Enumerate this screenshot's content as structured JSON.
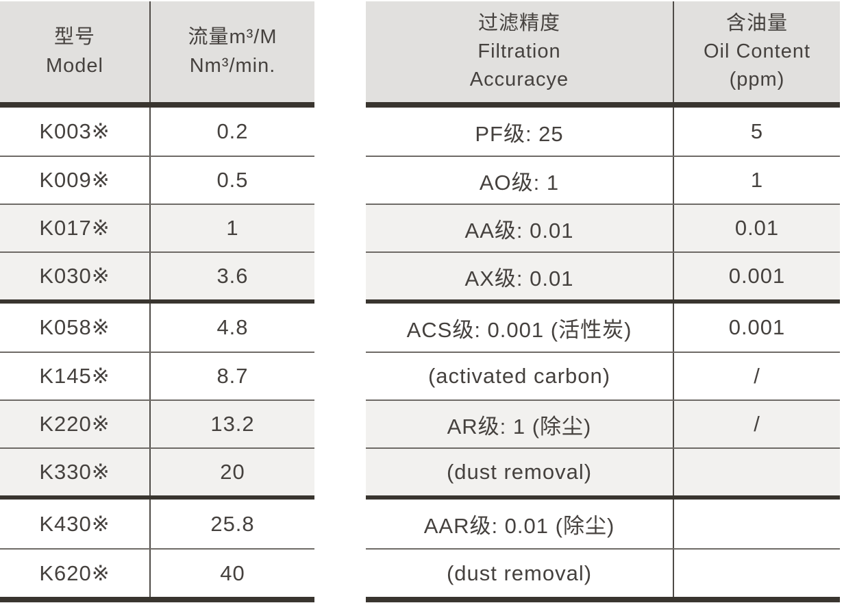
{
  "colors": {
    "header_bg": "#e1e0de",
    "row_shade_bg": "#f2f1ef",
    "thick_line": "#39352f",
    "thin_line": "#6e6a66",
    "divider_line": "#4e4a46",
    "text": "#45413e"
  },
  "left_table": {
    "headers": [
      {
        "lines": [
          "型号",
          "Model"
        ]
      },
      {
        "lines": [
          "流量m³/M",
          "Nm³/min."
        ]
      }
    ],
    "rows": [
      {
        "model": "K003※",
        "flow": "0.2"
      },
      {
        "model": "K009※",
        "flow": "0.5"
      },
      {
        "model": "K017※",
        "flow": "1"
      },
      {
        "model": "K030※",
        "flow": "3.6"
      },
      {
        "model": "K058※",
        "flow": "4.8"
      },
      {
        "model": "K145※",
        "flow": "8.7"
      },
      {
        "model": "K220※",
        "flow": "13.2"
      },
      {
        "model": "K330※",
        "flow": "20"
      },
      {
        "model": "K430※",
        "flow": "25.8"
      },
      {
        "model": "K620※",
        "flow": "40"
      }
    ]
  },
  "right_table": {
    "headers": [
      {
        "lines": [
          "过滤精度",
          "Filtration",
          "Accuracye"
        ]
      },
      {
        "lines": [
          "含油量",
          "Oil Content",
          "(ppm)"
        ]
      }
    ],
    "rows": [
      {
        "filtration": "PF级: 25",
        "oil": "5"
      },
      {
        "filtration": "AO级: 1",
        "oil": "1"
      },
      {
        "filtration": "AA级: 0.01",
        "oil": "0.01"
      },
      {
        "filtration": "AX级: 0.01",
        "oil": "0.001"
      },
      {
        "filtration": "ACS级: 0.001 (活性炭)",
        "oil": "0.001"
      },
      {
        "filtration": "(activated carbon)",
        "oil": "/"
      },
      {
        "filtration": "AR级: 1 (除尘)",
        "oil": "/"
      },
      {
        "filtration": "(dust removal)",
        "oil": ""
      },
      {
        "filtration": "AAR级: 0.01 (除尘)",
        "oil": ""
      },
      {
        "filtration": "(dust removal)",
        "oil": ""
      }
    ]
  }
}
